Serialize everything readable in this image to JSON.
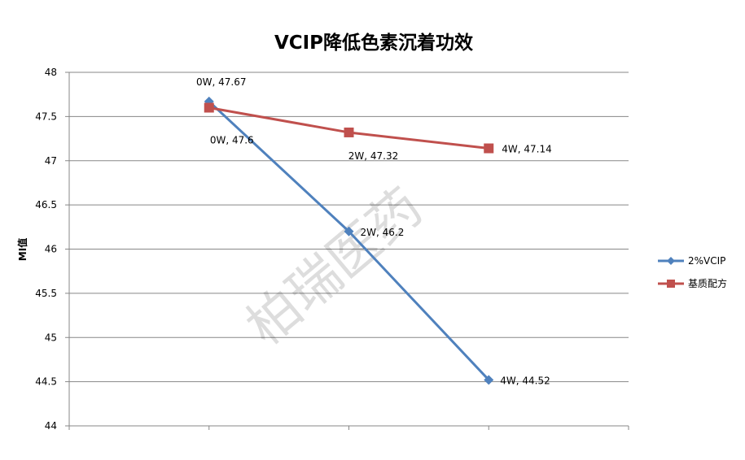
{
  "chart_data": {
    "type": "line",
    "title": "VCIP降低色素沉着功效",
    "xlabel": "",
    "ylabel": "MI值",
    "categories": [
      "",
      "0W",
      "2W",
      "4W",
      ""
    ],
    "ylim": [
      44,
      48
    ],
    "yticks": [
      "44",
      "44.5",
      "45",
      "45.5",
      "46",
      "46.5",
      "47",
      "47.5",
      "48"
    ],
    "grid": true,
    "legend_position": "right",
    "series": [
      {
        "name": "2%VCIP",
        "color": "#4F81BD",
        "marker": "diamond",
        "points": [
          {
            "x": "0W",
            "y": 47.67,
            "label": "0W, 47.67"
          },
          {
            "x": "2W",
            "y": 46.2,
            "label": "2W, 46.2"
          },
          {
            "x": "4W",
            "y": 44.52,
            "label": "4W, 44.52"
          }
        ]
      },
      {
        "name": "基质配方",
        "color": "#C0504D",
        "marker": "square",
        "points": [
          {
            "x": "0W",
            "y": 47.6,
            "label": "0W, 47.6"
          },
          {
            "x": "2W",
            "y": 47.32,
            "label": "2W, 47.32"
          },
          {
            "x": "4W",
            "y": 47.14,
            "label": "4W, 47.14"
          }
        ]
      }
    ],
    "watermark": "柏瑞医药"
  }
}
